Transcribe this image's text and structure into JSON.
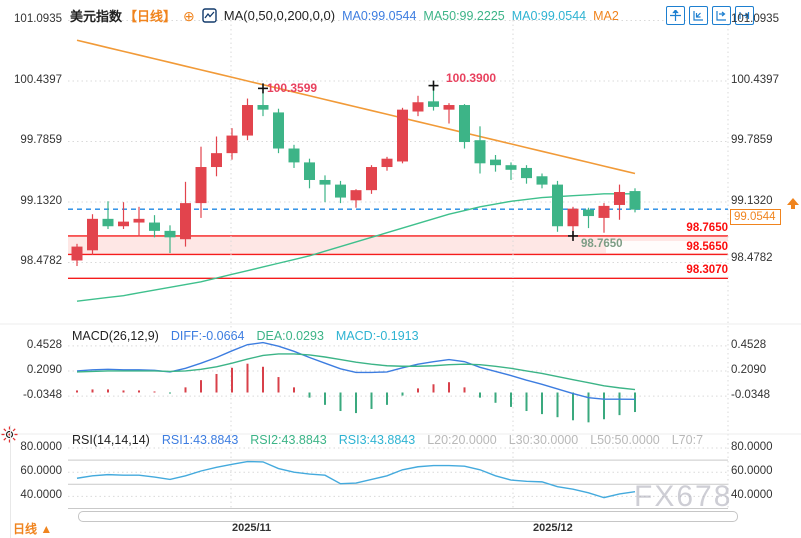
{
  "header": {
    "symbol": "美元指数",
    "timeframe_tag": "【日线】",
    "ma_settings": "MA(0,50,0,200,0,0)",
    "ma_values": [
      {
        "label": "MA0:99.0544",
        "color": "#3d7de0"
      },
      {
        "label": "MA50:99.2225",
        "color": "#3cb487"
      },
      {
        "label": "MA0:99.0544",
        "color": "#2eb3d2"
      },
      {
        "label": "MA2",
        "color": "#f0841e"
      }
    ]
  },
  "main_chart": {
    "y_axis_labels": [
      "101.0935",
      "100.4397",
      "99.7859",
      "99.1320",
      "98.4782"
    ],
    "current_price": "99.0544",
    "level_labels": [
      "98.7650",
      "98.5650",
      "98.3070"
    ],
    "annotation_high1": "100.3599",
    "annotation_high2": "100.3900",
    "annotation_low": "98.7650"
  },
  "macd_pane": {
    "title": "MACD(26,12,9)",
    "diff_label": "DIFF:-0.0664",
    "dea_label": "DEA:0.0293",
    "macd_label": "MACD:-0.1913",
    "y_axis_labels": [
      "0.4528",
      "0.2090",
      "-0.0348"
    ]
  },
  "rsi_pane": {
    "title": "RSI(14,14,14)",
    "rsi1_label": "RSI1:43.8843",
    "rsi2_label": "RSI2:43.8843",
    "rsi3_label": "RSI3:43.8843",
    "l20_label": "L20:20.0000",
    "l30_label": "L30:30.0000",
    "l50_label": "L50:50.0000",
    "l70_label": "L70:7",
    "y_axis_labels": [
      "80.0000",
      "60.0000",
      "40.0000"
    ]
  },
  "footer": {
    "tab_label": "日线",
    "tab_arrow": "▲",
    "date_labels": [
      "2025/11",
      "2025/12"
    ]
  },
  "watermark": "FX678",
  "colors": {
    "up": "#e2444d",
    "down": "#3db487",
    "ma200": "#f19a38",
    "ma50": "#3fc08d",
    "price_line": "#1e88e5",
    "level_line": "#f51c1c",
    "band_fill": "rgba(244,67,54,0.13)",
    "diff": "#3d7de0",
    "dea": "#3cb487",
    "hist_pos": "#d8404a",
    "hist_neg": "#3aa97e",
    "rsi": "#44aadd",
    "grid": "#d9d9d9",
    "grid_solid": "#c9c9c9",
    "accent": "#f0841e"
  },
  "chart_data": {
    "type": "candlestick",
    "title": "美元指数 日线",
    "x_axis_labels": [
      "2025/11",
      "2025/12"
    ],
    "y_axis_range": [
      98.31,
      101.09
    ],
    "candles_ohlc": [
      [
        98.5,
        98.68,
        98.44,
        98.65
      ],
      [
        98.61,
        99.0,
        98.56,
        98.95
      ],
      [
        98.95,
        99.14,
        98.84,
        98.87
      ],
      [
        98.87,
        99.13,
        98.84,
        98.92
      ],
      [
        98.91,
        99.08,
        98.76,
        98.95
      ],
      [
        98.91,
        98.99,
        98.75,
        98.82
      ],
      [
        98.82,
        98.88,
        98.58,
        98.75
      ],
      [
        98.73,
        99.35,
        98.65,
        99.12
      ],
      [
        99.12,
        99.73,
        98.96,
        99.51
      ],
      [
        99.51,
        99.84,
        99.41,
        99.66
      ],
      [
        99.66,
        99.93,
        99.59,
        99.85
      ],
      [
        99.85,
        100.25,
        99.8,
        100.18
      ],
      [
        100.18,
        100.36,
        100.06,
        100.13
      ],
      [
        100.1,
        100.14,
        99.66,
        99.71
      ],
      [
        99.71,
        99.75,
        99.5,
        99.56
      ],
      [
        99.56,
        99.6,
        99.28,
        99.37
      ],
      [
        99.37,
        99.42,
        99.13,
        99.32
      ],
      [
        99.32,
        99.36,
        99.12,
        99.18
      ],
      [
        99.15,
        99.27,
        99.07,
        99.26
      ],
      [
        99.26,
        99.53,
        99.22,
        99.51
      ],
      [
        99.51,
        99.62,
        99.47,
        99.6
      ],
      [
        99.57,
        100.15,
        99.55,
        100.13
      ],
      [
        100.11,
        100.28,
        100.06,
        100.21
      ],
      [
        100.22,
        100.39,
        100.12,
        100.16
      ],
      [
        100.13,
        100.2,
        99.98,
        100.18
      ],
      [
        100.18,
        100.19,
        99.71,
        99.78
      ],
      [
        99.8,
        99.95,
        99.44,
        99.55
      ],
      [
        99.59,
        99.64,
        99.46,
        99.53
      ],
      [
        99.53,
        99.56,
        99.37,
        99.48
      ],
      [
        99.5,
        99.53,
        99.33,
        99.39
      ],
      [
        99.41,
        99.44,
        99.28,
        99.32
      ],
      [
        99.32,
        99.36,
        98.81,
        98.87
      ],
      [
        98.87,
        99.08,
        98.77,
        99.06
      ],
      [
        99.05,
        99.07,
        98.85,
        98.98
      ],
      [
        98.96,
        99.12,
        98.8,
        99.09
      ],
      [
        99.1,
        99.32,
        98.94,
        99.24
      ],
      [
        99.25,
        99.28,
        99.02,
        99.05
      ]
    ],
    "ma200": [
      100.88,
      100.84,
      100.8,
      100.76,
      100.72,
      100.68,
      100.64,
      100.6,
      100.56,
      100.52,
      100.48,
      100.44,
      100.4,
      100.36,
      100.32,
      100.28,
      100.24,
      100.2,
      100.16,
      100.12,
      100.08,
      100.04,
      100.0,
      99.96,
      99.92,
      99.88,
      99.84,
      99.8,
      99.76,
      99.72,
      99.68,
      99.64,
      99.6,
      99.56,
      99.52,
      99.48,
      99.44
    ],
    "ma50": [
      98.06,
      98.08,
      98.1,
      98.12,
      98.15,
      98.18,
      98.21,
      98.24,
      98.27,
      98.31,
      98.35,
      98.39,
      98.43,
      98.47,
      98.51,
      98.55,
      98.6,
      98.65,
      98.7,
      98.75,
      98.8,
      98.85,
      98.9,
      98.95,
      99.0,
      99.04,
      99.08,
      99.11,
      99.14,
      99.16,
      99.18,
      99.19,
      99.2,
      99.21,
      99.22,
      99.22,
      99.22
    ],
    "current_price": 99.0544,
    "levels": [
      98.765,
      98.565,
      98.307
    ],
    "band": [
      98.765,
      98.565
    ],
    "markers": [
      {
        "bar": 12,
        "price": 100.3599,
        "type": "high"
      },
      {
        "bar": 23,
        "price": 100.39,
        "type": "high"
      },
      {
        "bar": 32,
        "price": 98.765,
        "type": "low"
      }
    ],
    "macd": {
      "diff": [
        0.21,
        0.22,
        0.225,
        0.22,
        0.22,
        0.215,
        0.2,
        0.235,
        0.285,
        0.34,
        0.405,
        0.465,
        0.485,
        0.45,
        0.4,
        0.34,
        0.285,
        0.23,
        0.195,
        0.195,
        0.2,
        0.24,
        0.275,
        0.3,
        0.32,
        0.3,
        0.245,
        0.205,
        0.165,
        0.12,
        0.08,
        0.035,
        -0.01,
        -0.05,
        -0.065,
        -0.065,
        -0.066
      ],
      "dea": [
        0.2,
        0.205,
        0.21,
        0.21,
        0.21,
        0.21,
        0.205,
        0.21,
        0.225,
        0.25,
        0.285,
        0.325,
        0.36,
        0.375,
        0.375,
        0.365,
        0.345,
        0.32,
        0.295,
        0.275,
        0.26,
        0.255,
        0.255,
        0.26,
        0.27,
        0.275,
        0.27,
        0.255,
        0.235,
        0.21,
        0.185,
        0.155,
        0.125,
        0.095,
        0.065,
        0.045,
        0.029
      ],
      "hist": [
        0.02,
        0.03,
        0.03,
        0.02,
        0.02,
        0.01,
        -0.01,
        0.05,
        0.12,
        0.18,
        0.24,
        0.28,
        0.25,
        0.15,
        0.05,
        -0.05,
        -0.12,
        -0.18,
        -0.2,
        -0.16,
        -0.12,
        -0.03,
        0.04,
        0.08,
        0.1,
        0.05,
        -0.05,
        -0.1,
        -0.14,
        -0.18,
        -0.21,
        -0.24,
        -0.27,
        -0.29,
        -0.26,
        -0.22,
        -0.19
      ]
    },
    "rsi": [
      55,
      57,
      58,
      57.5,
      57.5,
      56,
      54,
      57,
      61,
      64,
      66.5,
      68.8,
      68.5,
      63,
      60,
      58.5,
      57.5,
      50.5,
      51,
      54,
      57,
      62,
      64.5,
      65.5,
      65.5,
      65,
      62,
      57,
      53.5,
      52.5,
      52,
      48,
      46,
      43,
      39,
      42,
      43.9
    ]
  }
}
